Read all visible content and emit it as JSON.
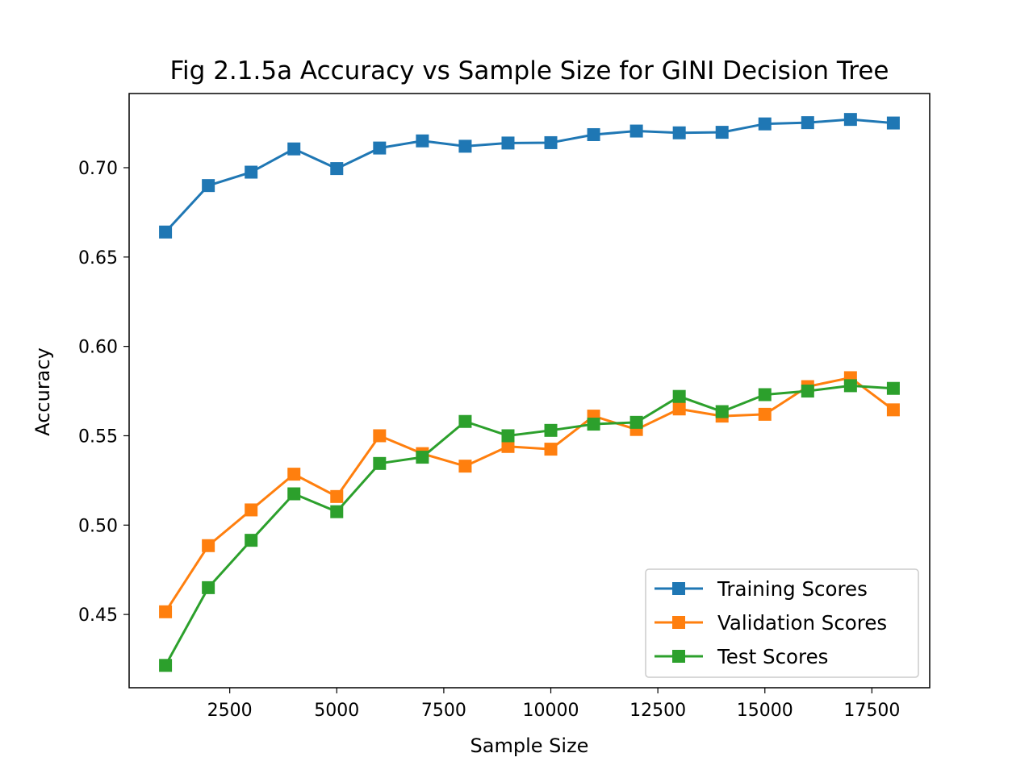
{
  "chart_data": {
    "type": "line",
    "title": "Fig 2.1.5a Accuracy vs Sample Size for GINI Decision Tree",
    "xlabel": "Sample Size",
    "ylabel": "Accuracy",
    "xlim": [
      150,
      18850
    ],
    "ylim": [
      0.409,
      0.7415
    ],
    "xticks": [
      2500,
      5000,
      7500,
      10000,
      12500,
      15000,
      17500
    ],
    "yticks": [
      0.45,
      0.5,
      0.55,
      0.6,
      0.65,
      0.7
    ],
    "grid": false,
    "legend_position": "lower right",
    "marker": "square",
    "x": [
      1000,
      2000,
      3000,
      4000,
      5000,
      6000,
      7000,
      8000,
      9000,
      10000,
      11000,
      12000,
      13000,
      14000,
      15000,
      16000,
      17000,
      18000
    ],
    "series": [
      {
        "name": "Training Scores",
        "color": "#1f77b4",
        "values": [
          0.664,
          0.69,
          0.6975,
          0.7105,
          0.6995,
          0.711,
          0.715,
          0.712,
          0.7138,
          0.714,
          0.7185,
          0.7205,
          0.7195,
          0.7198,
          0.7245,
          0.7252,
          0.727,
          0.725
        ]
      },
      {
        "name": "Validation Scores",
        "color": "#ff7f0e",
        "values": [
          0.4515,
          0.4885,
          0.5085,
          0.5285,
          0.516,
          0.55,
          0.54,
          0.533,
          0.544,
          0.5425,
          0.561,
          0.5535,
          0.565,
          0.561,
          0.562,
          0.5775,
          0.5825,
          0.5645
        ]
      },
      {
        "name": "Test Scores",
        "color": "#2ca02c",
        "values": [
          0.4215,
          0.465,
          0.4915,
          0.5175,
          0.5075,
          0.5345,
          0.538,
          0.558,
          0.55,
          0.553,
          0.5565,
          0.5575,
          0.572,
          0.5635,
          0.573,
          0.575,
          0.578,
          0.5765
        ]
      }
    ]
  }
}
